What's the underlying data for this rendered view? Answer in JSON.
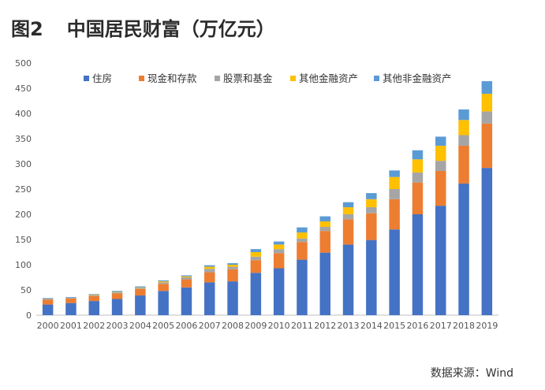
{
  "header": {
    "figure_no": "图2",
    "title": "中国居民财富（万亿元）"
  },
  "source": "数据来源：Wind",
  "chart_data": {
    "type": "bar",
    "stacked": true,
    "categories": [
      "2000",
      "2001",
      "2002",
      "2003",
      "2004",
      "2005",
      "2006",
      "2007",
      "2008",
      "2009",
      "2010",
      "2011",
      "2012",
      "2013",
      "2014",
      "2015",
      "2016",
      "2017",
      "2018",
      "2019"
    ],
    "series": [
      {
        "name": "住房",
        "color": "#4472C4",
        "values": [
          21,
          24,
          28,
          32,
          39,
          48,
          55,
          65,
          67,
          84,
          93,
          110,
          124,
          140,
          149,
          170,
          200,
          217,
          261,
          292
        ]
      },
      {
        "name": "现金和存款",
        "color": "#ED7D31",
        "values": [
          10,
          9,
          10,
          11,
          13,
          14,
          16,
          20,
          24,
          25,
          30,
          35,
          43,
          50,
          53,
          60,
          63,
          69,
          75,
          88
        ]
      },
      {
        "name": "股票和基金",
        "color": "#A5A5A5",
        "values": [
          2,
          2,
          2,
          2,
          2,
          3,
          4,
          7,
          5,
          7,
          8,
          7,
          8,
          10,
          12,
          20,
          20,
          20,
          21,
          24
        ]
      },
      {
        "name": "其他金融资产",
        "color": "#FFC000",
        "values": [
          0,
          0,
          1,
          1,
          1,
          2,
          2,
          4,
          4,
          9,
          9,
          12,
          11,
          14,
          16,
          24,
          26,
          30,
          30,
          35
        ]
      },
      {
        "name": "其他非金融资产",
        "color": "#5B9BD5",
        "values": [
          1,
          1,
          1,
          2,
          2,
          2,
          2,
          3,
          3,
          6,
          6,
          10,
          10,
          10,
          12,
          13,
          18,
          18,
          21,
          25
        ]
      }
    ],
    "ylim": [
      0,
      500
    ],
    "yticks": [
      0,
      50,
      100,
      150,
      200,
      250,
      300,
      350,
      400,
      450,
      500
    ],
    "grid": false,
    "legend": "top"
  }
}
